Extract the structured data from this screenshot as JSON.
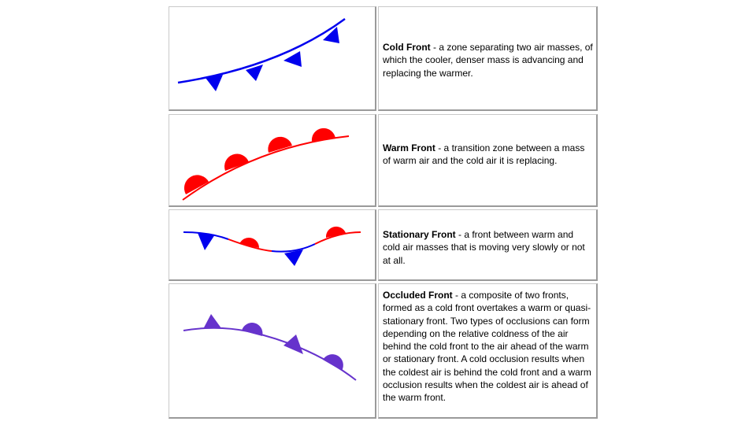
{
  "colors": {
    "cold": "#0000ee",
    "warm": "#ff0000",
    "occluded": "#6633cc",
    "border_dark": "#9a9a9a",
    "border_light": "#c9c9c9"
  },
  "rows": [
    {
      "symbol": "cold-front-symbol",
      "term": "Cold Front",
      "definition": " - a zone separating two air masses, of which the cooler, denser mass is advancing and replacing the warmer."
    },
    {
      "symbol": "warm-front-symbol",
      "term": "Warm Front",
      "definition": " - a transition zone between a mass of warm air and the cold air it is replacing."
    },
    {
      "symbol": "stationary-front-symbol",
      "term": "Stationary Front",
      "definition": " - a front between warm and cold air masses that is moving very slowly or not at all."
    },
    {
      "symbol": "occluded-front-symbol",
      "term": "Occluded Front",
      "definition": " - a composite of two fronts, formed as a cold front overtakes a warm or quasi-stationary front.  Two types of occlusions can form depending on the relative coldness of the air behind the cold front to the air ahead of the warm or stationary front.  A cold occlusion results when the coldest air is behind the cold front and a warm occlusion results when the coldest air is ahead of the warm front."
    }
  ]
}
